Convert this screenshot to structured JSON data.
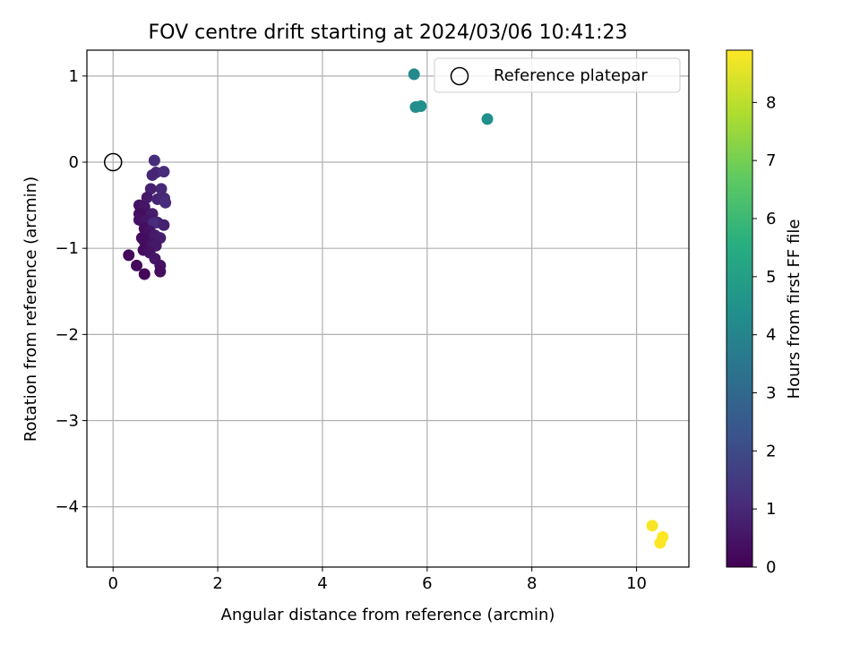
{
  "chart_data": {
    "type": "scatter",
    "title": "FOV centre drift starting at 2024/03/06 10:41:23",
    "xlabel": "Angular distance from reference (arcmin)",
    "ylabel": "Rotation from reference (arcmin)",
    "xlim": [
      -0.5,
      11
    ],
    "ylim": [
      -4.7,
      1.3
    ],
    "xticks": [
      0,
      2,
      4,
      6,
      8,
      10
    ],
    "yticks": [
      1,
      0,
      -1,
      -2,
      -3,
      -4
    ],
    "grid": true,
    "legend": {
      "placement": "top-right",
      "entries": [
        "Reference platepar"
      ]
    },
    "reference_point": {
      "x": 0,
      "y": 0
    },
    "colorbar": {
      "label": "Hours from first FF file",
      "min": 0,
      "max": 8.9,
      "ticks": [
        0,
        1,
        2,
        3,
        4,
        5,
        6,
        7,
        8
      ],
      "colormap": "viridis"
    },
    "points": [
      {
        "x": 0.79,
        "y": 0.02,
        "h": 1.1
      },
      {
        "x": 0.82,
        "y": -0.12,
        "h": 1.0
      },
      {
        "x": 0.97,
        "y": -0.11,
        "h": 1.1
      },
      {
        "x": 0.75,
        "y": -0.15,
        "h": 0.9
      },
      {
        "x": 0.72,
        "y": -0.31,
        "h": 0.8
      },
      {
        "x": 0.92,
        "y": -0.31,
        "h": 1.0
      },
      {
        "x": 0.65,
        "y": -0.41,
        "h": 0.6
      },
      {
        "x": 0.85,
        "y": -0.43,
        "h": 0.9
      },
      {
        "x": 0.98,
        "y": -0.42,
        "h": 1.0
      },
      {
        "x": 1.0,
        "y": -0.47,
        "h": 1.1
      },
      {
        "x": 0.5,
        "y": -0.5,
        "h": 0.4
      },
      {
        "x": 0.6,
        "y": -0.52,
        "h": 0.5
      },
      {
        "x": 0.55,
        "y": -0.6,
        "h": 0.4
      },
      {
        "x": 0.5,
        "y": -0.6,
        "h": 0.3
      },
      {
        "x": 0.75,
        "y": -0.6,
        "h": 0.7
      },
      {
        "x": 0.7,
        "y": -0.65,
        "h": 0.6
      },
      {
        "x": 0.5,
        "y": -0.67,
        "h": 0.4
      },
      {
        "x": 0.62,
        "y": -0.68,
        "h": 0.5
      },
      {
        "x": 0.85,
        "y": -0.7,
        "h": 0.9
      },
      {
        "x": 0.77,
        "y": -0.71,
        "h": 1.1
      },
      {
        "x": 0.97,
        "y": -0.73,
        "h": 0.8
      },
      {
        "x": 0.6,
        "y": -0.77,
        "h": 0.3
      },
      {
        "x": 0.7,
        "y": -0.8,
        "h": 0.5
      },
      {
        "x": 0.65,
        "y": -0.85,
        "h": 0.4
      },
      {
        "x": 0.8,
        "y": -0.85,
        "h": 0.6
      },
      {
        "x": 0.55,
        "y": -0.88,
        "h": 0.3
      },
      {
        "x": 0.9,
        "y": -0.88,
        "h": 0.7
      },
      {
        "x": 0.6,
        "y": -0.92,
        "h": 0.3
      },
      {
        "x": 0.75,
        "y": -0.95,
        "h": 0.5
      },
      {
        "x": 0.82,
        "y": -0.97,
        "h": 0.6
      },
      {
        "x": 0.58,
        "y": -1.02,
        "h": 0.3
      },
      {
        "x": 0.7,
        "y": -1.05,
        "h": 0.4
      },
      {
        "x": 0.3,
        "y": -1.08,
        "h": 0.2
      },
      {
        "x": 0.8,
        "y": -1.12,
        "h": 0.5
      },
      {
        "x": 0.45,
        "y": -1.2,
        "h": 0.2
      },
      {
        "x": 0.9,
        "y": -1.2,
        "h": 0.4
      },
      {
        "x": 0.9,
        "y": -1.27,
        "h": 0.3
      },
      {
        "x": 0.6,
        "y": -1.3,
        "h": 0.1
      },
      {
        "x": 5.75,
        "y": 1.02,
        "h": 4.2
      },
      {
        "x": 5.78,
        "y": 0.64,
        "h": 4.3
      },
      {
        "x": 5.88,
        "y": 0.65,
        "h": 4.4
      },
      {
        "x": 7.15,
        "y": 0.5,
        "h": 4.4
      },
      {
        "x": 10.3,
        "y": -4.22,
        "h": 8.8
      },
      {
        "x": 10.5,
        "y": -4.35,
        "h": 8.9
      },
      {
        "x": 10.45,
        "y": -4.42,
        "h": 8.9
      }
    ]
  }
}
